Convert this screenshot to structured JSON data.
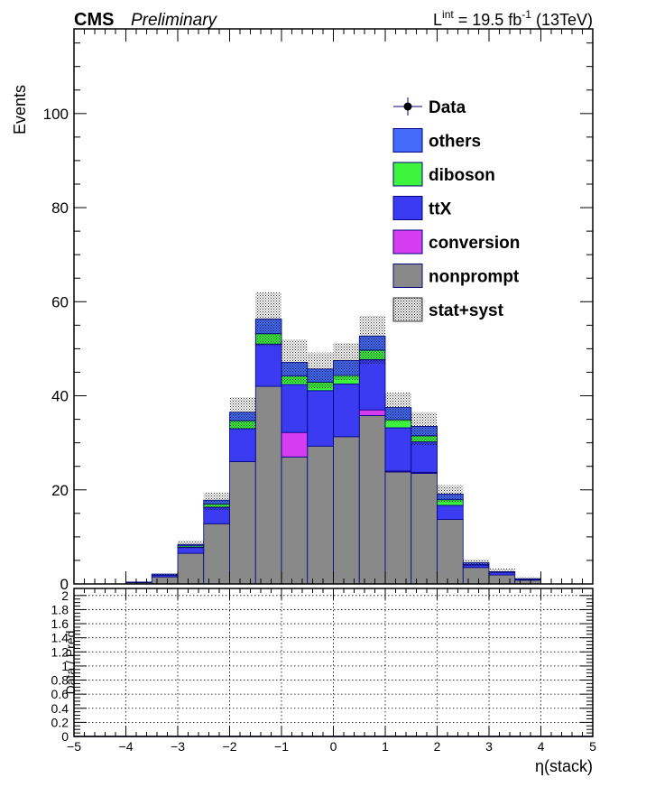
{
  "header": {
    "experiment": "CMS",
    "status": "Preliminary",
    "lumi_prefix": "L",
    "lumi_sup": "int",
    "lumi_value": " = 19.5 fb",
    "lumi_exp": "-1",
    "lumi_suffix": " (13TeV)"
  },
  "chart_data": [
    {
      "type": "bar",
      "subtype": "stacked-histogram",
      "ylabel": "Events",
      "xlim": [
        -5,
        5
      ],
      "ylim": [
        0,
        118
      ],
      "yticks": [
        "0",
        "20",
        "40",
        "60",
        "80",
        "100"
      ],
      "yticks_values": [
        0,
        20,
        40,
        60,
        80,
        100
      ],
      "bin_edges": [
        -5,
        -4.5,
        -4,
        -3.5,
        -3,
        -2.5,
        -2,
        -1.5,
        -1,
        -0.5,
        0,
        0.5,
        1,
        1.5,
        2,
        2.5,
        3,
        3.5,
        4,
        4.5,
        5
      ],
      "series": [
        {
          "name": "nonprompt",
          "color": "#898989",
          "values": [
            0,
            0,
            0.3,
            1.5,
            6.5,
            12.8,
            26,
            42,
            27,
            29.3,
            31.3,
            35.8,
            23.8,
            23.5,
            13.7,
            3.5,
            1.9,
            0.8,
            0,
            0
          ]
        },
        {
          "name": "conversion",
          "color": "#d63cf0",
          "values": [
            0,
            0,
            0,
            0,
            0,
            0,
            0,
            0,
            5.2,
            0,
            0,
            1.2,
            0.2,
            0.2,
            0,
            0,
            0,
            0,
            0,
            0
          ]
        },
        {
          "name": "ttX",
          "color": "#3b3bf2",
          "values": [
            0,
            0,
            0.1,
            0.3,
            1.3,
            3.5,
            7,
            9,
            10.2,
            11.8,
            11.2,
            10.7,
            9.2,
            6.5,
            3,
            0.5,
            0.6,
            0.2,
            0,
            0
          ]
        },
        {
          "name": "diboson",
          "color": "#3cf53c",
          "values": [
            0,
            0,
            0,
            0,
            0.3,
            0.7,
            1.7,
            2.2,
            1.8,
            1.8,
            1.8,
            2,
            1.7,
            1.3,
            1.2,
            0.1,
            0.1,
            0,
            0,
            0
          ]
        },
        {
          "name": "others",
          "color": "#436cfb",
          "values": [
            0,
            0,
            0,
            0.3,
            0.3,
            0.8,
            1.8,
            3.1,
            2.9,
            2.8,
            3.2,
            3,
            2.6,
            2,
            1.2,
            0.4,
            0,
            0.1,
            0,
            0
          ]
        }
      ],
      "uncertainty": {
        "name": "stat+syst",
        "up": [
          0,
          0,
          0.5,
          2.2,
          9.2,
          19.5,
          39.7,
          62,
          52,
          49.2,
          51.2,
          57,
          40.7,
          36.5,
          21,
          5.2,
          3.3,
          1.4,
          0,
          0
        ],
        "down": [
          0,
          0,
          0.3,
          1.9,
          7.5,
          15.8,
          32.9,
          50.6,
          42.8,
          41.5,
          43.4,
          46.7,
          34.5,
          29.5,
          17.3,
          4,
          2.3,
          1,
          0,
          0
        ]
      },
      "data": {
        "name": "Data",
        "values": []
      },
      "legend": {
        "position": "top-right",
        "entries": [
          {
            "label": "Data",
            "style": "marker"
          },
          {
            "label": "others",
            "color": "#436cfb"
          },
          {
            "label": "diboson",
            "color": "#3cf53c"
          },
          {
            "label": "ttX",
            "color": "#3b3bf2"
          },
          {
            "label": "conversion",
            "color": "#d63cf0"
          },
          {
            "label": "nonprompt",
            "color": "#898989"
          },
          {
            "label": "stat+syst",
            "style": "hatch"
          }
        ]
      }
    },
    {
      "type": "line",
      "subtype": "ratio",
      "xlabel": "η(stack)",
      "ylabel": "Data / Pred",
      "xlim": [
        -5,
        5
      ],
      "ylim": [
        0,
        2.1
      ],
      "grid": true,
      "xticks": [
        "−5",
        "−4",
        "−3",
        "−2",
        "−1",
        "0",
        "1",
        "2",
        "3",
        "4",
        "5"
      ],
      "xticks_values": [
        -5,
        -4,
        -3,
        -2,
        -1,
        0,
        1,
        2,
        3,
        4,
        5
      ],
      "yticks": [
        "0",
        "0.2",
        "0.4",
        "0.6",
        "0.8",
        "1",
        "1.2",
        "1.4",
        "1.6",
        "1.8",
        "2"
      ],
      "yticks_values": [
        0,
        0.2,
        0.4,
        0.6,
        0.8,
        1,
        1.2,
        1.4,
        1.6,
        1.8,
        2
      ],
      "values": [
        0,
        0,
        0,
        0,
        0,
        0,
        0,
        0,
        0,
        0,
        0,
        0,
        0,
        0,
        0,
        0,
        0,
        0,
        0,
        0
      ]
    }
  ]
}
